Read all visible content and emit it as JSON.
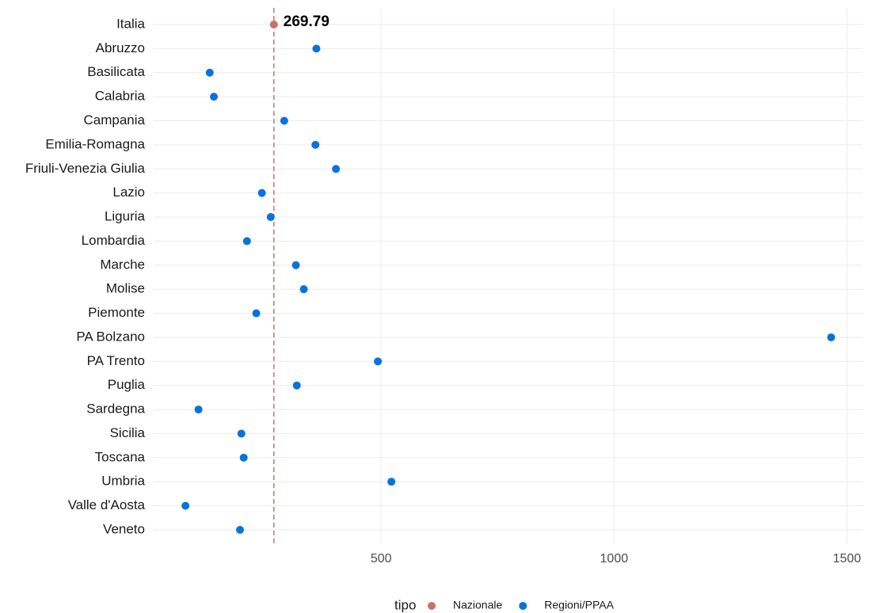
{
  "chart_data": {
    "type": "dot",
    "categories": [
      "Italia",
      "Abruzzo",
      "Basilicata",
      "Calabria",
      "Campania",
      "Emilia-Romagna",
      "Friuli-Venezia Giulia",
      "Lazio",
      "Liguria",
      "Lombardia",
      "Marche",
      "Molise",
      "Piemonte",
      "PA Bolzano",
      "PA Trento",
      "Puglia",
      "Sardegna",
      "Sicilia",
      "Toscana",
      "Umbria",
      "Valle d'Aosta",
      "Veneto"
    ],
    "series": [
      {
        "name": "Nazionale",
        "color": "#c8736a",
        "values": [
          269.79,
          null,
          null,
          null,
          null,
          null,
          null,
          null,
          null,
          null,
          null,
          null,
          null,
          null,
          null,
          null,
          null,
          null,
          null,
          null,
          null,
          null
        ]
      },
      {
        "name": "Regioni/PPAA",
        "color": "#0b72d9",
        "values": [
          null,
          361,
          132,
          141,
          292,
          359,
          403,
          244,
          263,
          212,
          317,
          334,
          232,
          1466,
          493,
          319,
          108,
          200,
          205,
          522,
          80,
          197
        ]
      }
    ],
    "legend_title": "tipo",
    "xlim": [
      10,
      1535
    ],
    "xticks": [
      500,
      1000,
      1500
    ],
    "grid": true,
    "reference_line": "Nazionale",
    "legend_position": "bottom"
  }
}
